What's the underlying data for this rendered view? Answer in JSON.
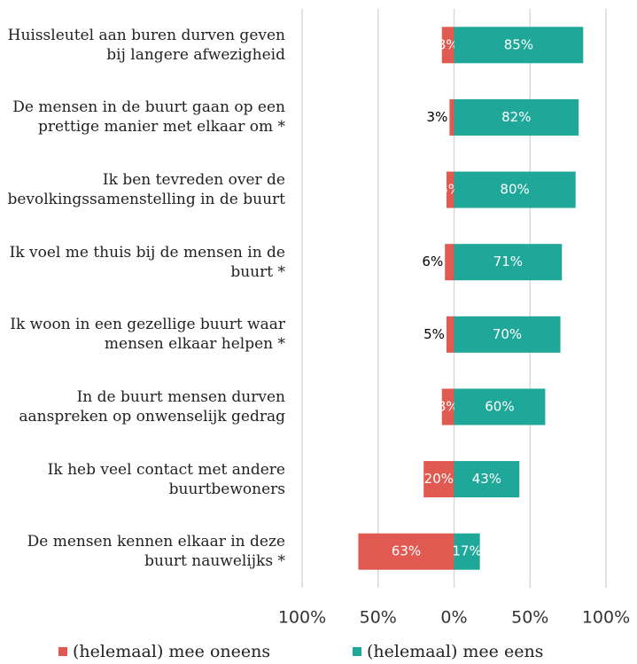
{
  "chart_data": {
    "type": "diverging-bar",
    "categories": [
      "Huissleutel aan buren durven geven bij langere afwezigheid",
      "De mensen in de buurt gaan op een prettige manier met elkaar om *",
      "Ik ben tevreden over de bevolkingssamenstelling in de buurt",
      "Ik voel me thuis bij de mensen in de buurt *",
      "Ik woon in een gezellige buurt waar mensen elkaar helpen *",
      "In de buurt mensen durven aanspreken op onwenselijk gedrag",
      "Ik heb veel contact met andere buurtbewoners",
      "De mensen kennen elkaar in deze buurt nauwelijks *"
    ],
    "series": [
      {
        "name": "(helemaal) mee oneens",
        "color": "#e05a52",
        "side": "left",
        "values": [
          8,
          3,
          5,
          6,
          5,
          8,
          20,
          63
        ],
        "value_labels": [
          "8%",
          "3%",
          "5%",
          "6%",
          "5%",
          "8%",
          "20%",
          "63%"
        ],
        "label_colors": [
          "#ffffff",
          "#000000",
          "#ffffff",
          "#000000",
          "#000000",
          "#ffffff",
          "#ffffff",
          "#ffffff"
        ]
      },
      {
        "name": "(helemaal) mee eens",
        "color": "#1fa89a",
        "side": "right",
        "values": [
          85,
          82,
          80,
          71,
          70,
          60,
          43,
          17
        ],
        "value_labels": [
          "85%",
          "82%",
          "80%",
          "71%",
          "70%",
          "60%",
          "43%",
          "17%"
        ],
        "label_colors": [
          "#ffffff",
          "#ffffff",
          "#ffffff",
          "#ffffff",
          "#ffffff",
          "#ffffff",
          "#ffffff",
          "#ffffff"
        ]
      }
    ],
    "xlim": [
      -100,
      100
    ],
    "xticks": [
      {
        "value": -100,
        "label": "100%"
      },
      {
        "value": -50,
        "label": "50%"
      },
      {
        "value": 0,
        "label": "0%"
      },
      {
        "value": 50,
        "label": "50%"
      },
      {
        "value": 100,
        "label": "100%"
      }
    ],
    "grid": true
  }
}
